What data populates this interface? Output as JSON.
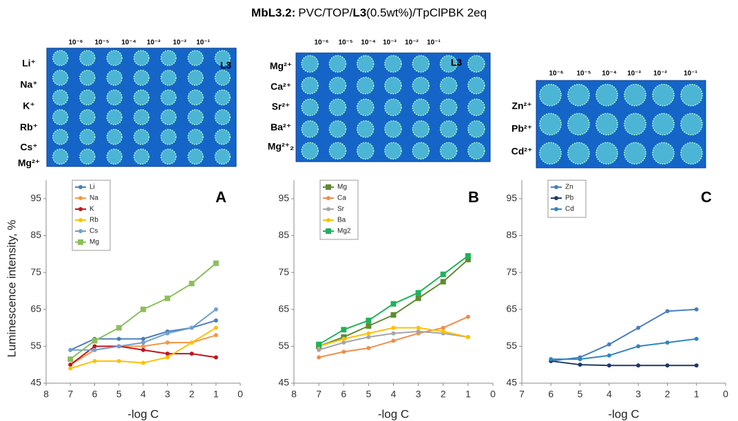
{
  "title_parts": [
    {
      "text": "MbL3.2:",
      "bold": true
    },
    {
      "text": "PVC/TOP/",
      "bold": false
    },
    {
      "text": "L3",
      "bold": true
    },
    {
      "text": "(0.5wt%)/TpClPBK 2eq",
      "bold": false
    }
  ],
  "plates": [
    {
      "columns": [
        "10⁻⁶",
        "10⁻⁵",
        "10⁻⁴",
        "10⁻³",
        "10⁻²",
        "10⁻¹"
      ],
      "rows": [
        "Li⁺",
        "Na⁺",
        "K⁺",
        "Rb⁺",
        "Cs⁺",
        "Mg²⁺"
      ],
      "label": "L3"
    },
    {
      "columns": [
        "10⁻⁶",
        "10⁻⁵",
        "10⁻⁴",
        "10⁻³",
        "10⁻²",
        "10⁻¹"
      ],
      "rows": [
        "Mg²⁺",
        "Ca²⁺",
        "Sr²⁺",
        "Ba²⁺",
        "Mg²⁺₂"
      ],
      "label": "L3"
    },
    {
      "columns": [
        "10⁻⁶",
        "10⁻⁵",
        "10⁻⁴",
        "10⁻³",
        "10⁻²",
        "10⁻¹"
      ],
      "rows": [
        "Zn²⁺",
        "Pb²⁺",
        "Cd²⁺"
      ]
    }
  ],
  "chart_data": [
    {
      "type": "line",
      "panel": "A",
      "ylabel": "Luminescence intensity, %",
      "xlabel": "-log C",
      "xlim": [
        8,
        0
      ],
      "xticks": [
        8,
        7,
        6,
        5,
        4,
        3,
        2,
        1,
        0
      ],
      "ylim": [
        45,
        100
      ],
      "yticks": [
        45,
        55,
        65,
        75,
        85,
        95
      ],
      "legend": "upper left",
      "x": [
        7,
        6,
        5,
        4,
        3,
        2,
        1
      ],
      "series": [
        {
          "name": "Li",
          "color": "#4a7ebb",
          "marker": "circle",
          "values": [
            54,
            57,
            57,
            57,
            59,
            60,
            62
          ]
        },
        {
          "name": "Na",
          "color": "#f79646",
          "marker": "circle",
          "values": [
            50,
            54,
            55,
            55,
            56,
            56,
            58
          ]
        },
        {
          "name": "K",
          "color": "#c0141b",
          "marker": "circle",
          "values": [
            50,
            55,
            55,
            54,
            53,
            53,
            52
          ]
        },
        {
          "name": "Rb",
          "color": "#ffc000",
          "marker": "circle",
          "values": [
            49,
            51,
            51,
            50.5,
            52,
            56,
            60
          ]
        },
        {
          "name": "Cs",
          "color": "#6fa0d0",
          "marker": "circle",
          "values": [
            54,
            54,
            55,
            56,
            58.5,
            60,
            65
          ]
        },
        {
          "name": "Mg",
          "color": "#8cbf5a",
          "marker": "square",
          "values": [
            51.5,
            56.5,
            60,
            65,
            68,
            72,
            77.5
          ]
        }
      ]
    },
    {
      "type": "line",
      "panel": "B",
      "xlabel": "-log C",
      "xlim": [
        8,
        0
      ],
      "xticks": [
        8,
        7,
        6,
        5,
        4,
        3,
        2,
        1,
        0
      ],
      "ylim": [
        45,
        100
      ],
      "yticks": [
        45,
        55,
        65,
        75,
        85,
        95
      ],
      "legend": "upper left",
      "x": [
        7,
        6,
        5,
        4,
        3,
        2,
        1
      ],
      "series": [
        {
          "name": "Mg",
          "color": "#5e8c31",
          "marker": "square",
          "values": [
            55,
            57.5,
            60.5,
            63.5,
            68,
            72.5,
            78.5
          ]
        },
        {
          "name": "Ca",
          "color": "#f08c4a",
          "marker": "circle",
          "values": [
            52,
            53.5,
            54.5,
            56.5,
            58.5,
            60,
            63
          ]
        },
        {
          "name": "Sr",
          "color": "#a5a5a5",
          "marker": "circle",
          "values": [
            54,
            56,
            57.5,
            58.5,
            59,
            58.5,
            57.5
          ]
        },
        {
          "name": "Ba",
          "color": "#ffc000",
          "marker": "circle",
          "values": [
            55,
            57,
            58.5,
            60,
            60,
            59,
            57.5
          ]
        },
        {
          "name": "Mg2",
          "color": "#1fb25a",
          "marker": "square",
          "values": [
            55.5,
            59.5,
            62,
            66.5,
            69.5,
            74.5,
            79.5
          ]
        }
      ]
    },
    {
      "type": "line",
      "panel": "C",
      "xlabel": "-log C",
      "xlim": [
        7,
        0
      ],
      "xticks": [
        7,
        6,
        5,
        4,
        3,
        2,
        1,
        0
      ],
      "ylim": [
        45,
        100
      ],
      "yticks": [
        45,
        55,
        65,
        75,
        85,
        95
      ],
      "legend": "upper left",
      "x": [
        6,
        5,
        4,
        3,
        2,
        1
      ],
      "series": [
        {
          "name": "Zn",
          "color": "#4a7ebb",
          "marker": "circle",
          "values": [
            51,
            52,
            55.5,
            60,
            64.5,
            65
          ]
        },
        {
          "name": "Pb",
          "color": "#1f3864",
          "marker": "circle",
          "values": [
            51,
            50,
            49.8,
            49.8,
            49.8,
            49.8
          ]
        },
        {
          "name": "Cd",
          "color": "#2e86c1",
          "marker": "circle",
          "values": [
            51.5,
            51.5,
            52.5,
            55,
            56,
            57
          ]
        }
      ]
    }
  ]
}
